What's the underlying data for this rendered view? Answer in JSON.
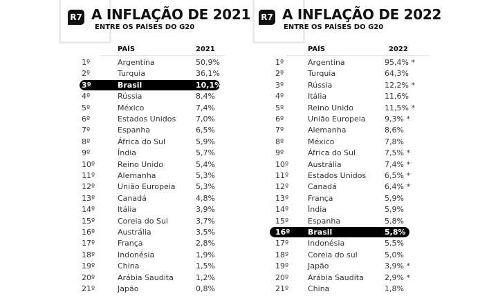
{
  "chart_data": [
    {
      "type": "table",
      "logo": "R7",
      "title": "A INFLAÇÃO DE 2021",
      "subtitle": "ENTRE OS PAÍSES DO G20",
      "columns": [
        "PAÍS",
        "2021"
      ],
      "highlight": "Brasil",
      "rows": [
        [
          "1º",
          "Argentina",
          "50,9%"
        ],
        [
          "2º",
          "Turquia",
          "36,1%"
        ],
        [
          "3º",
          "Brasil",
          "10,1%"
        ],
        [
          "4º",
          "Rússia",
          "8,4%"
        ],
        [
          "5º",
          "México",
          "7,4%"
        ],
        [
          "6º",
          "Estados Unidos",
          "7,0%"
        ],
        [
          "7º",
          "Espanha",
          "6,5%"
        ],
        [
          "8º",
          "África do Sul",
          "5,9%"
        ],
        [
          "9º",
          "Índia",
          "5,7%"
        ],
        [
          "10º",
          "Reino Unido",
          "5,4%"
        ],
        [
          "11º",
          "Alemanha",
          "5,3%"
        ],
        [
          "12º",
          "União Europeia",
          "5,3%"
        ],
        [
          "13º",
          "Canadá",
          "4,8%"
        ],
        [
          "14º",
          "Itália",
          "3,9%"
        ],
        [
          "15º",
          "Coreia do Sul",
          "3,7%"
        ],
        [
          "16º",
          "Austrália",
          "3,5%"
        ],
        [
          "17º",
          "França",
          "2,8%"
        ],
        [
          "18º",
          "Indonésia",
          "1,9%"
        ],
        [
          "19º",
          "China",
          "1,5%"
        ],
        [
          "20º",
          "Arábia Saudita",
          "1,2%"
        ],
        [
          "21º",
          "Japão",
          "0,8%"
        ]
      ]
    },
    {
      "type": "table",
      "logo": "R7",
      "title": "A INFLAÇÃO DE 2022",
      "subtitle": "ENTRE OS PAÍSES DO G20",
      "columns": [
        "PAÍS",
        "2022"
      ],
      "highlight": "Brasil",
      "rows": [
        [
          "1º",
          "Argentina",
          "95,4% *"
        ],
        [
          "2º",
          "Turquia",
          "64,3%"
        ],
        [
          "3º",
          "Rússia",
          "12,2% *"
        ],
        [
          "4º",
          "Itália",
          "11,6%"
        ],
        [
          "5º",
          "Reino Unido",
          "11,5% *"
        ],
        [
          "6º",
          "União Europeia",
          "9,3% *"
        ],
        [
          "7º",
          "Alemanha",
          "8,6%"
        ],
        [
          "8º",
          "México",
          "7,8%"
        ],
        [
          "9º",
          "África do Sul",
          "7,5% *"
        ],
        [
          "10º",
          "Austrália",
          "7,4% *"
        ],
        [
          "11º",
          "Estados Unidos",
          "6,5% *"
        ],
        [
          "12º",
          "Canadá",
          "6,4% *"
        ],
        [
          "13º",
          "França",
          "5,9%"
        ],
        [
          "14º",
          "Índia",
          "5,9%"
        ],
        [
          "15º",
          "Espanha",
          "5,8%"
        ],
        [
          "16º",
          "Brasil",
          "5,8%"
        ],
        [
          "17º",
          "Indonésia",
          "5,5%"
        ],
        [
          "18º",
          "Coreia do sul",
          "5,0%"
        ],
        [
          "19º",
          "Japão",
          "3,9% *"
        ],
        [
          "20º",
          "Arábia Saudita",
          "2,9% *"
        ],
        [
          "21º",
          "China",
          "1,8%"
        ]
      ]
    }
  ]
}
